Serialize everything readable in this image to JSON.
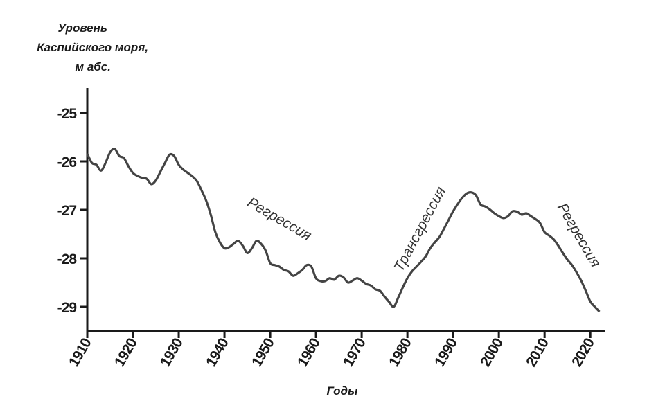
{
  "chart_data": {
    "type": "line",
    "y_label": [
      "Уровень",
      "Каспийского моря,",
      "м абс."
    ],
    "x_label": "Годы",
    "annotations": [
      "Регрессия",
      "Трансгрессия",
      "Регрессия"
    ],
    "x": [
      1910,
      1911,
      1912,
      1913,
      1914,
      1915,
      1916,
      1917,
      1918,
      1919,
      1920,
      1921,
      1922,
      1923,
      1924,
      1925,
      1926,
      1927,
      1928,
      1929,
      1930,
      1931,
      1932,
      1933,
      1934,
      1935,
      1936,
      1937,
      1938,
      1939,
      1940,
      1941,
      1942,
      1943,
      1944,
      1945,
      1946,
      1947,
      1948,
      1949,
      1950,
      1951,
      1952,
      1953,
      1954,
      1955,
      1956,
      1957,
      1958,
      1959,
      1960,
      1961,
      1962,
      1963,
      1964,
      1965,
      1966,
      1967,
      1968,
      1969,
      1970,
      1971,
      1972,
      1973,
      1974,
      1975,
      1976,
      1977,
      1978,
      1979,
      1980,
      1981,
      1982,
      1983,
      1984,
      1985,
      1986,
      1987,
      1988,
      1989,
      1990,
      1991,
      1992,
      1993,
      1994,
      1995,
      1996,
      1997,
      1998,
      1999,
      2000,
      2001,
      2002,
      2003,
      2004,
      2005,
      2006,
      2007,
      2008,
      2009,
      2010,
      2011,
      2012,
      2013,
      2014,
      2015,
      2016,
      2017,
      2018,
      2019,
      2020,
      2021,
      2022
    ],
    "series": [
      {
        "color": "#444444",
        "values": [
          -25.84,
          -26.03,
          -26.07,
          -26.19,
          -26.03,
          -25.81,
          -25.74,
          -25.89,
          -25.93,
          -26.1,
          -26.24,
          -26.3,
          -26.34,
          -26.36,
          -26.47,
          -26.39,
          -26.21,
          -26.03,
          -25.86,
          -25.89,
          -26.07,
          -26.17,
          -26.24,
          -26.31,
          -26.41,
          -26.6,
          -26.81,
          -27.1,
          -27.46,
          -27.67,
          -27.79,
          -27.77,
          -27.7,
          -27.64,
          -27.74,
          -27.89,
          -27.79,
          -27.64,
          -27.7,
          -27.84,
          -28.1,
          -28.14,
          -28.17,
          -28.24,
          -28.27,
          -28.36,
          -28.31,
          -28.24,
          -28.14,
          -28.17,
          -28.41,
          -28.47,
          -28.47,
          -28.41,
          -28.44,
          -28.36,
          -28.39,
          -28.5,
          -28.46,
          -28.41,
          -28.46,
          -28.53,
          -28.56,
          -28.64,
          -28.67,
          -28.79,
          -28.9,
          -29.0,
          -28.81,
          -28.6,
          -28.41,
          -28.27,
          -28.17,
          -28.07,
          -27.96,
          -27.79,
          -27.67,
          -27.56,
          -27.39,
          -27.21,
          -27.03,
          -26.88,
          -26.75,
          -26.66,
          -26.64,
          -26.7,
          -26.89,
          -26.93,
          -26.99,
          -27.07,
          -27.13,
          -27.17,
          -27.13,
          -27.03,
          -27.04,
          -27.1,
          -27.07,
          -27.13,
          -27.19,
          -27.27,
          -27.46,
          -27.53,
          -27.61,
          -27.74,
          -27.89,
          -28.03,
          -28.14,
          -28.29,
          -28.46,
          -28.67,
          -28.89,
          -29.0,
          -29.1
        ]
      }
    ],
    "xlim": [
      1910,
      2023
    ],
    "xticks": [
      1910,
      1920,
      1930,
      1940,
      1950,
      1960,
      1970,
      1980,
      1990,
      2000,
      2010,
      2020
    ],
    "ylim": [
      -29.5,
      -24.5
    ],
    "yticks": [
      -25,
      -26,
      -27,
      -28,
      -29
    ],
    "grid": false
  }
}
